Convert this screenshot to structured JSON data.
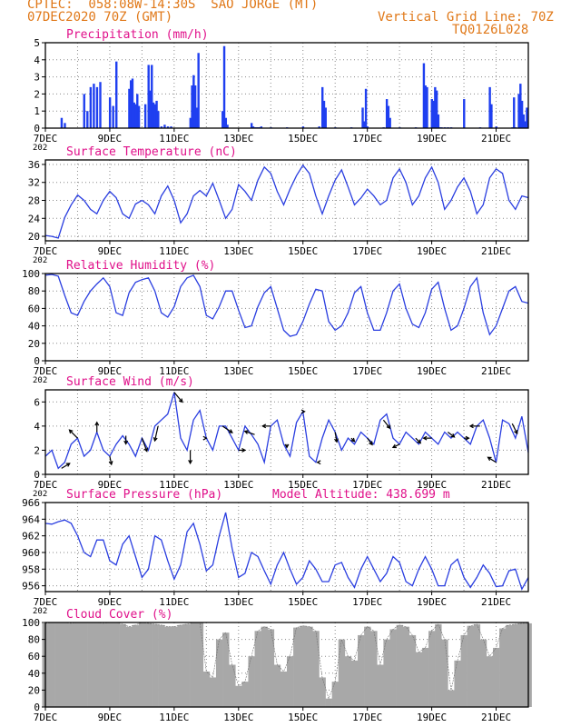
{
  "header": {
    "line1": "CPTEC:  058:08W-14:30S  SAO JORGE (MT)",
    "line2": "07DEC2020 70Z (GMT)",
    "grid_note": "Vertical Grid Line: 70Z",
    "run_code": "TQ0126L028"
  },
  "colors": {
    "header": "#e07818",
    "title": "#e0108a",
    "line": "#2a3ee0",
    "bar": "#1f3ff0",
    "cloud": "#a8a8a8",
    "arrow": "#000000",
    "grid": "#8a8a8a"
  },
  "time_axis": {
    "start_day": 7,
    "end_day": 22,
    "tick_labels": [
      "7DEC",
      "9DEC",
      "11DEC",
      "13DEC",
      "15DEC",
      "17DEC",
      "19DEC",
      "21DEC"
    ],
    "tick_days": [
      7,
      9,
      11,
      13,
      15,
      17,
      19,
      21
    ],
    "year_fragment": "202"
  },
  "chart_data": [
    {
      "id": "precip",
      "type": "bar",
      "title": "Precipitation (mm/h)",
      "ylim": [
        0,
        5
      ],
      "yticks": [
        0,
        1,
        2,
        3,
        4,
        5
      ],
      "x": [
        7.5,
        7.6,
        8.2,
        8.3,
        8.4,
        8.5,
        8.6,
        8.7,
        9.0,
        9.1,
        9.2,
        9.6,
        9.65,
        9.7,
        9.75,
        9.8,
        9.85,
        9.9,
        10.1,
        10.2,
        10.25,
        10.3,
        10.35,
        10.4,
        10.45,
        10.5,
        10.6,
        10.7,
        10.8,
        10.9,
        11.5,
        11.55,
        11.6,
        11.65,
        11.7,
        11.75,
        12.5,
        12.55,
        12.6,
        12.65,
        13.4,
        13.45,
        13.5,
        13.55,
        13.6,
        13.65,
        13.7,
        14.0,
        14.5,
        15.0,
        15.5,
        15.6,
        15.65,
        15.7,
        16.0,
        16.5,
        16.85,
        16.9,
        16.95,
        17.0,
        17.5,
        17.6,
        17.65,
        17.7,
        18.0,
        18.5,
        18.75,
        18.8,
        18.85,
        19.0,
        19.05,
        19.1,
        19.15,
        19.2,
        19.25,
        19.3,
        19.4,
        19.5,
        19.6,
        20.0,
        20.5,
        20.8,
        20.85,
        21.0,
        21.5,
        21.55,
        21.6,
        21.7,
        21.75,
        21.8,
        21.85,
        21.9,
        21.95
      ],
      "values": [
        0.6,
        0.3,
        2.0,
        1.0,
        2.4,
        2.6,
        2.4,
        2.7,
        1.8,
        1.3,
        3.9,
        2.3,
        2.8,
        2.9,
        1.5,
        1.4,
        2.0,
        1.3,
        1.4,
        3.7,
        2.2,
        3.7,
        1.5,
        1.4,
        1.6,
        1.0,
        0.1,
        0.2,
        0.1,
        0.1,
        0.6,
        2.5,
        3.1,
        2.5,
        1.2,
        4.4,
        1.0,
        4.8,
        0.6,
        0.2,
        0.3,
        0.1,
        0.05,
        0.05,
        0.05,
        0.05,
        0.1,
        0.05,
        0.05,
        0.1,
        0.1,
        2.4,
        1.6,
        1.2,
        0.05,
        0.05,
        1.2,
        0.4,
        2.3,
        0.1,
        0.05,
        1.7,
        1.3,
        0.6,
        0.05,
        0.05,
        3.8,
        2.5,
        2.4,
        1.7,
        1.6,
        2.4,
        2.2,
        0.8,
        0.05,
        0.05,
        0.05,
        0.05,
        0.05,
        1.7,
        0.05,
        2.4,
        1.4,
        0.1,
        0.05,
        1.8,
        0.05,
        2.0,
        2.6,
        1.6,
        0.8,
        0.4,
        1.2
      ]
    },
    {
      "id": "temp",
      "type": "line",
      "title": "Surface Temperature (nC)",
      "ylim": [
        19,
        37
      ],
      "yticks": [
        20,
        24,
        28,
        32,
        36
      ],
      "x": [
        7,
        7.2,
        7.4,
        7.6,
        7.8,
        8.0,
        8.2,
        8.4,
        8.6,
        8.8,
        9.0,
        9.2,
        9.4,
        9.6,
        9.8,
        10.0,
        10.2,
        10.4,
        10.6,
        10.8,
        11.0,
        11.2,
        11.4,
        11.6,
        11.8,
        12.0,
        12.2,
        12.4,
        12.6,
        12.8,
        13.0,
        13.2,
        13.4,
        13.6,
        13.8,
        14.0,
        14.2,
        14.4,
        14.6,
        14.8,
        15.0,
        15.2,
        15.4,
        15.6,
        15.8,
        16.0,
        16.2,
        16.4,
        16.6,
        16.8,
        17.0,
        17.2,
        17.4,
        17.6,
        17.8,
        18.0,
        18.2,
        18.4,
        18.6,
        18.8,
        19.0,
        19.2,
        19.4,
        19.6,
        19.8,
        20.0,
        20.2,
        20.4,
        20.6,
        20.8,
        21.0,
        21.2,
        21.4,
        21.6,
        21.8,
        22.0
      ],
      "values": [
        20.2,
        20.0,
        19.6,
        24.2,
        27.0,
        29.2,
        28.0,
        26.0,
        25.0,
        28.0,
        30.0,
        28.6,
        25.0,
        24.0,
        27.2,
        28.0,
        27.0,
        25.0,
        29.0,
        31.2,
        28.0,
        23.0,
        25.0,
        29.0,
        30.2,
        29.0,
        31.8,
        28.0,
        24.0,
        26.0,
        31.5,
        30.0,
        28.0,
        32.5,
        35.4,
        34.0,
        30.0,
        27.0,
        30.5,
        33.5,
        35.8,
        34.0,
        29.0,
        25.0,
        29.0,
        32.5,
        34.8,
        31.0,
        27.0,
        28.5,
        30.5,
        29.0,
        27.0,
        28.0,
        33.0,
        35.0,
        32.0,
        27.0,
        29.0,
        33.0,
        35.4,
        32.0,
        26.0,
        28.0,
        31.0,
        33.0,
        30.0,
        25.0,
        27.0,
        33.0,
        35.0,
        34.0,
        28.0,
        26.0,
        29.0,
        28.6
      ]
    },
    {
      "id": "rh",
      "type": "line",
      "title": "Relative Humidity (%)",
      "ylim": [
        0,
        100
      ],
      "yticks": [
        0,
        20,
        40,
        60,
        80,
        100
      ],
      "x": [
        7,
        7.2,
        7.4,
        7.6,
        7.8,
        8.0,
        8.2,
        8.4,
        8.6,
        8.8,
        9.0,
        9.2,
        9.4,
        9.6,
        9.8,
        10.0,
        10.2,
        10.4,
        10.6,
        10.8,
        11.0,
        11.2,
        11.4,
        11.6,
        11.8,
        12.0,
        12.2,
        12.4,
        12.6,
        12.8,
        13.0,
        13.2,
        13.4,
        13.6,
        13.8,
        14.0,
        14.2,
        14.4,
        14.6,
        14.8,
        15.0,
        15.2,
        15.4,
        15.6,
        15.8,
        16.0,
        16.2,
        16.4,
        16.6,
        16.8,
        17.0,
        17.2,
        17.4,
        17.6,
        17.8,
        18.0,
        18.2,
        18.4,
        18.6,
        18.8,
        19.0,
        19.2,
        19.4,
        19.6,
        19.8,
        20.0,
        20.2,
        20.4,
        20.6,
        20.8,
        21.0,
        21.2,
        21.4,
        21.6,
        21.8,
        22.0
      ],
      "values": [
        98,
        99,
        97,
        75,
        55,
        52,
        68,
        80,
        88,
        95,
        85,
        55,
        52,
        78,
        90,
        93,
        95,
        80,
        55,
        50,
        62,
        85,
        95,
        98,
        85,
        52,
        48,
        62,
        80,
        80,
        58,
        38,
        40,
        62,
        78,
        85,
        60,
        35,
        28,
        30,
        45,
        65,
        82,
        80,
        45,
        35,
        40,
        55,
        78,
        85,
        55,
        35,
        35,
        55,
        80,
        88,
        60,
        42,
        38,
        55,
        82,
        90,
        60,
        35,
        40,
        60,
        85,
        95,
        55,
        30,
        40,
        60,
        80,
        85,
        68,
        66
      ]
    },
    {
      "id": "wind",
      "type": "line",
      "title": "Surface Wind (m/s)",
      "ylim": [
        0,
        7
      ],
      "yticks": [
        0,
        2,
        4,
        6
      ],
      "x": [
        7,
        7.2,
        7.4,
        7.6,
        7.8,
        8.0,
        8.2,
        8.4,
        8.6,
        8.8,
        9.0,
        9.2,
        9.4,
        9.6,
        9.8,
        10.0,
        10.2,
        10.4,
        10.6,
        10.8,
        11.0,
        11.2,
        11.4,
        11.6,
        11.8,
        12.0,
        12.2,
        12.4,
        12.6,
        12.8,
        13.0,
        13.2,
        13.4,
        13.6,
        13.8,
        14.0,
        14.2,
        14.4,
        14.6,
        14.8,
        15.0,
        15.2,
        15.4,
        15.6,
        15.8,
        16.0,
        16.2,
        16.4,
        16.6,
        16.8,
        17.0,
        17.2,
        17.4,
        17.6,
        17.8,
        18.0,
        18.2,
        18.4,
        18.6,
        18.8,
        19.0,
        19.2,
        19.4,
        19.6,
        19.8,
        20.0,
        20.2,
        20.4,
        20.6,
        20.8,
        21.0,
        21.2,
        21.4,
        21.6,
        21.8,
        22.0
      ],
      "values": [
        1.5,
        2.0,
        0.5,
        1.0,
        2.5,
        3.0,
        1.5,
        2.0,
        3.5,
        2.0,
        1.5,
        2.5,
        3.2,
        2.5,
        1.5,
        3.0,
        2.0,
        4.0,
        4.5,
        5.0,
        6.8,
        3.0,
        2.0,
        4.5,
        5.3,
        3.0,
        2.0,
        4.0,
        4.0,
        3.0,
        2.0,
        4.0,
        3.3,
        2.5,
        1.0,
        4.0,
        4.5,
        2.5,
        1.5,
        4.3,
        5.2,
        1.5,
        1.0,
        3.0,
        4.5,
        3.5,
        2.0,
        3.0,
        2.5,
        3.5,
        3.0,
        2.5,
        4.5,
        5.0,
        3.0,
        2.5,
        3.5,
        3.0,
        2.5,
        3.5,
        3.0,
        2.5,
        3.5,
        3.0,
        3.5,
        3.0,
        2.5,
        4.0,
        4.5,
        3.0,
        1.0,
        4.5,
        4.2,
        3.0,
        4.8,
        1.8
      ],
      "vector_x": [
        7.5,
        8.0,
        8.6,
        9.0,
        9.5,
        10.0,
        10.5,
        11.0,
        11.5,
        12.0,
        12.5,
        13.0,
        13.5,
        14.0,
        14.5,
        15.0,
        15.5,
        16.0,
        16.5,
        17.0,
        17.5,
        18.0,
        18.5,
        19.0,
        19.5,
        20.0,
        20.5,
        21.0,
        21.5
      ],
      "vector_u": [
        0.5,
        -0.5,
        0.0,
        0.1,
        0.0,
        0.3,
        -0.2,
        0.5,
        0.0,
        0.0,
        0.6,
        0.4,
        -0.6,
        -0.5,
        0.0,
        0.1,
        -0.1,
        0.1,
        0.2,
        0.3,
        0.4,
        -0.4,
        0.3,
        -0.5,
        0.4,
        0.3,
        -0.6,
        -0.5,
        0.3
      ],
      "vector_v": [
        0.3,
        0.5,
        0.6,
        -0.5,
        -0.5,
        -0.8,
        -0.9,
        -0.6,
        -0.8,
        0.0,
        -0.4,
        0.0,
        0.2,
        0.0,
        -0.2,
        0.0,
        0.0,
        -0.6,
        -0.2,
        -0.4,
        -0.5,
        -0.2,
        -0.3,
        0.0,
        -0.3,
        0.0,
        0.0,
        0.3,
        -0.6
      ]
    },
    {
      "id": "press",
      "type": "line",
      "title": "Surface Pressure (hPa)",
      "subtitle": "Model Altitude: 438.699 m",
      "ylim": [
        955.3,
        966
      ],
      "yticks": [
        956,
        958,
        960,
        962,
        964,
        966
      ],
      "x": [
        7,
        7.2,
        7.4,
        7.6,
        7.8,
        8.0,
        8.2,
        8.4,
        8.6,
        8.8,
        9.0,
        9.2,
        9.4,
        9.6,
        9.8,
        10.0,
        10.2,
        10.4,
        10.6,
        10.8,
        11.0,
        11.2,
        11.4,
        11.6,
        11.8,
        12.0,
        12.2,
        12.4,
        12.6,
        12.8,
        13.0,
        13.2,
        13.4,
        13.6,
        13.8,
        14.0,
        14.2,
        14.4,
        14.6,
        14.8,
        15.0,
        15.2,
        15.4,
        15.6,
        15.8,
        16.0,
        16.2,
        16.4,
        16.6,
        16.8,
        17.0,
        17.2,
        17.4,
        17.6,
        17.8,
        18.0,
        18.2,
        18.4,
        18.6,
        18.8,
        19.0,
        19.2,
        19.4,
        19.6,
        19.8,
        20.0,
        20.2,
        20.4,
        20.6,
        20.8,
        21.0,
        21.2,
        21.4,
        21.6,
        21.8,
        22.0
      ],
      "values": [
        963.5,
        963.4,
        963.7,
        963.9,
        963.5,
        962.0,
        960.0,
        959.5,
        961.5,
        961.5,
        959.0,
        958.5,
        961.0,
        962.0,
        959.5,
        957.0,
        958.0,
        962.0,
        961.5,
        959.0,
        956.8,
        958.5,
        962.5,
        963.5,
        961.0,
        957.8,
        958.5,
        962.0,
        964.8,
        960.5,
        957.0,
        957.5,
        960.0,
        959.5,
        957.8,
        956.2,
        958.5,
        960.0,
        958.0,
        956.2,
        957.0,
        959.0,
        958.0,
        956.5,
        956.5,
        958.5,
        958.8,
        957.0,
        955.8,
        958.0,
        959.5,
        958.0,
        956.5,
        957.5,
        959.5,
        958.8,
        956.5,
        956.0,
        958.0,
        959.5,
        958.0,
        956.0,
        956.0,
        958.5,
        959.2,
        957.0,
        955.8,
        957.0,
        958.5,
        957.5,
        955.9,
        956.0,
        957.8,
        958.0,
        955.6,
        957.0
      ]
    },
    {
      "id": "cloud",
      "type": "area",
      "title": "Cloud Cover (%)",
      "ylim": [
        0,
        100
      ],
      "yticks": [
        0,
        20,
        40,
        60,
        80,
        100
      ],
      "x": [
        7,
        7.2,
        7.4,
        7.6,
        7.8,
        8.0,
        8.2,
        8.4,
        8.6,
        8.8,
        9.0,
        9.2,
        9.4,
        9.6,
        9.8,
        10.0,
        10.2,
        10.4,
        10.6,
        10.8,
        11.0,
        11.2,
        11.4,
        11.6,
        11.8,
        12.0,
        12.2,
        12.4,
        12.6,
        12.8,
        13.0,
        13.2,
        13.4,
        13.6,
        13.8,
        14.0,
        14.2,
        14.4,
        14.6,
        14.8,
        15.0,
        15.2,
        15.4,
        15.6,
        15.8,
        16.0,
        16.2,
        16.4,
        16.6,
        16.8,
        17.0,
        17.2,
        17.4,
        17.6,
        17.8,
        18.0,
        18.2,
        18.4,
        18.6,
        18.8,
        19.0,
        19.2,
        19.4,
        19.6,
        19.8,
        20.0,
        20.2,
        20.4,
        20.6,
        20.8,
        21.0,
        21.2,
        21.4,
        21.6,
        21.8,
        22.0
      ],
      "values": [
        99,
        100,
        100,
        100,
        99,
        100,
        100,
        100,
        100,
        99,
        100,
        100,
        98,
        95,
        97,
        100,
        99,
        98,
        97,
        95,
        95,
        97,
        98,
        100,
        100,
        42,
        35,
        80,
        88,
        50,
        25,
        30,
        60,
        90,
        95,
        92,
        50,
        42,
        60,
        94,
        96,
        95,
        90,
        35,
        10,
        30,
        80,
        60,
        55,
        85,
        95,
        90,
        50,
        80,
        92,
        97,
        95,
        85,
        65,
        70,
        90,
        98,
        80,
        20,
        55,
        85,
        96,
        98,
        80,
        60,
        70,
        93,
        97,
        98,
        99,
        99
      ]
    }
  ]
}
